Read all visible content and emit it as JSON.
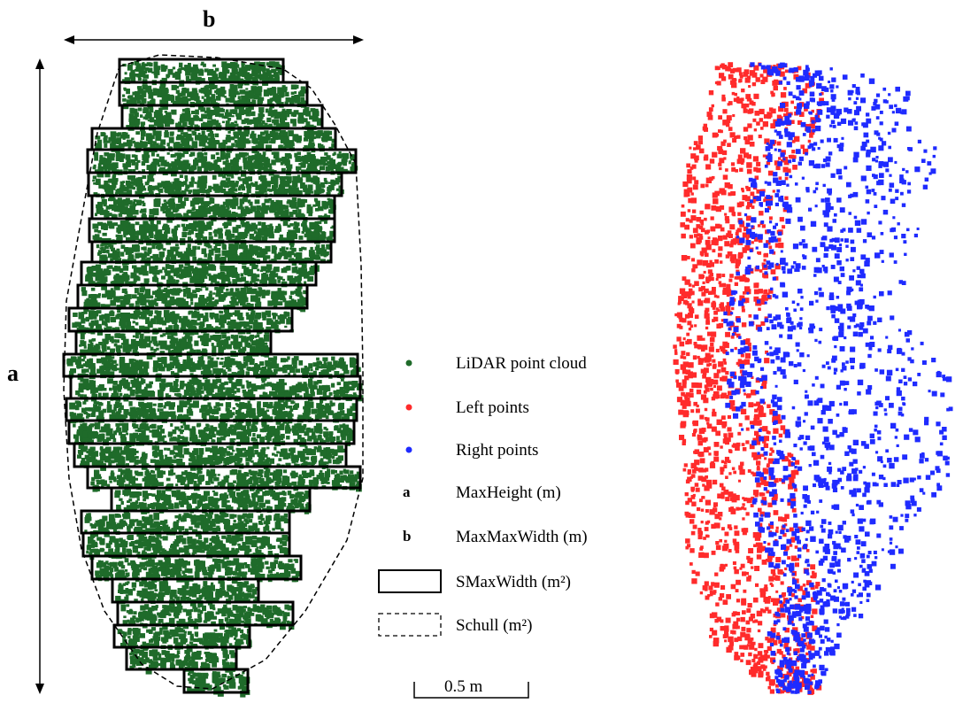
{
  "dimension_labels": {
    "height_marker": "a",
    "width_marker": "b"
  },
  "legend": {
    "items": [
      {
        "kind": "dot",
        "color": "#1f6b2a",
        "label": "LiDAR point cloud"
      },
      {
        "kind": "dot",
        "color": "#ff2b2b",
        "label": "Left points"
      },
      {
        "kind": "dot",
        "color": "#1f2bff",
        "label": "Right points"
      },
      {
        "kind": "letter",
        "letter": "a",
        "label": "MaxHeight (m)"
      },
      {
        "kind": "letter",
        "letter": "b",
        "label": "MaxMaxWidth (m)"
      },
      {
        "kind": "solid-box",
        "label": "SMaxWidth (m²)"
      },
      {
        "kind": "dashed-box",
        "label": "Schull (m²)"
      }
    ]
  },
  "scale_bar": {
    "label": "0.5 m"
  },
  "colors": {
    "lidar": "#1f6b2a",
    "left": "#ff2b2b",
    "right": "#1f2bff"
  }
}
